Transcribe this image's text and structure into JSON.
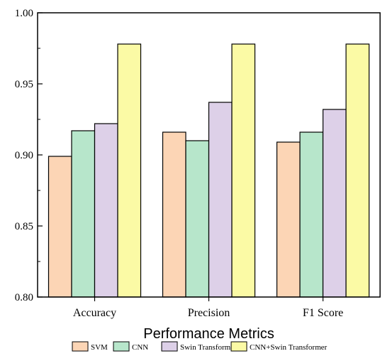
{
  "chart_data": {
    "type": "bar",
    "title": "",
    "xlabel": "Performance Metrics",
    "ylabel": "",
    "categories": [
      "Accuracy",
      "Precision",
      "F1 Score"
    ],
    "series": [
      {
        "name": "SVM",
        "values": [
          0.899,
          0.916,
          0.909
        ],
        "color": "#fcd5b5"
      },
      {
        "name": "CNN",
        "values": [
          0.917,
          0.91,
          0.916
        ],
        "color": "#b7e6cb"
      },
      {
        "name": "Swin Transformer",
        "values": [
          0.922,
          0.937,
          0.932
        ],
        "color": "#ddd0e8"
      },
      {
        "name": "CNN+Swin Transformer",
        "values": [
          0.978,
          0.978,
          0.978
        ],
        "color": "#fbfaa5"
      }
    ],
    "ylim": [
      0.8,
      1.0
    ],
    "yticks": [
      "0.80",
      "0.85",
      "0.90",
      "0.95",
      "1.00"
    ],
    "grid": false,
    "legend_position": "bottom"
  }
}
